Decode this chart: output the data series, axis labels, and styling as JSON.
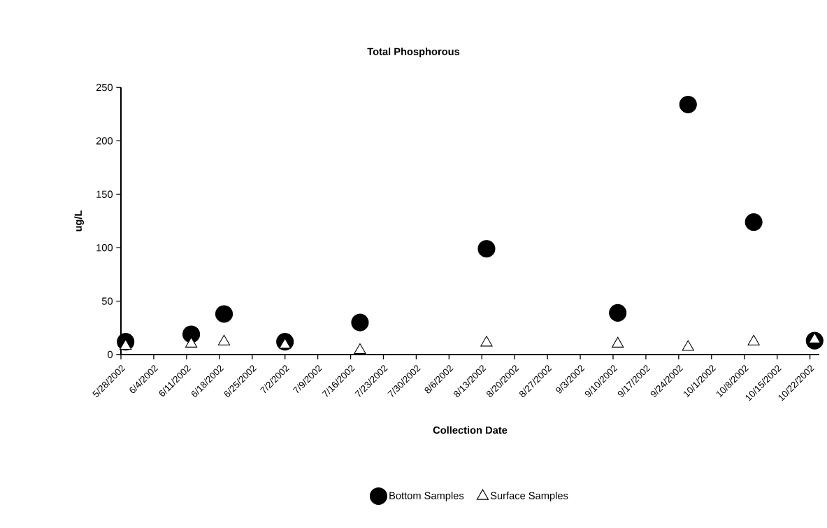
{
  "chart_data": {
    "type": "scatter",
    "title": "Total Phosphorous",
    "xlabel": "Collection Date",
    "ylabel": "ug/L",
    "xlim": [
      "2002-05-28",
      "2002-10-24"
    ],
    "xticks": [
      {
        "value": "2002-05-28",
        "label": "5/28/2002"
      },
      {
        "value": "2002-06-04",
        "label": "6/4/2002"
      },
      {
        "value": "2002-06-11",
        "label": "6/11/2002"
      },
      {
        "value": "2002-06-18",
        "label": "6/18/2002"
      },
      {
        "value": "2002-06-25",
        "label": "6/25/2002"
      },
      {
        "value": "2002-07-02",
        "label": "7/2/2002"
      },
      {
        "value": "2002-07-09",
        "label": "7/9/2002"
      },
      {
        "value": "2002-07-16",
        "label": "7/16/2002"
      },
      {
        "value": "2002-07-23",
        "label": "7/23/2002"
      },
      {
        "value": "2002-07-30",
        "label": "7/30/2002"
      },
      {
        "value": "2002-08-06",
        "label": "8/6/2002"
      },
      {
        "value": "2002-08-13",
        "label": "8/13/2002"
      },
      {
        "value": "2002-08-20",
        "label": "8/20/2002"
      },
      {
        "value": "2002-08-27",
        "label": "8/27/2002"
      },
      {
        "value": "2002-09-03",
        "label": "9/3/2002"
      },
      {
        "value": "2002-09-10",
        "label": "9/10/2002"
      },
      {
        "value": "2002-09-17",
        "label": "9/17/2002"
      },
      {
        "value": "2002-09-24",
        "label": "9/24/2002"
      },
      {
        "value": "2002-10-01",
        "label": "10/1/2002"
      },
      {
        "value": "2002-10-08",
        "label": "10/8/2002"
      },
      {
        "value": "2002-10-15",
        "label": "10/15/2002"
      },
      {
        "value": "2002-10-22",
        "label": "10/22/2002"
      }
    ],
    "ylim": [
      0,
      250
    ],
    "yticks": [
      0,
      50,
      100,
      150,
      200,
      250
    ],
    "grid": false,
    "legend": "bottom",
    "x": [
      "2002-05-29",
      "2002-06-12",
      "2002-06-19",
      "2002-07-02",
      "2002-07-18",
      "2002-08-14",
      "2002-09-11",
      "2002-09-26",
      "2002-10-10",
      "2002-10-23"
    ],
    "series": [
      {
        "name": "Bottom Samples",
        "color": "#000000",
        "marker": "circle",
        "values": [
          12,
          19,
          38,
          12,
          30,
          99,
          39,
          234,
          124,
          13
        ]
      },
      {
        "name": "Surface Samples",
        "color": "#ffffff",
        "marker": "triangle",
        "values": [
          8,
          10,
          12,
          9,
          4,
          11,
          10,
          7,
          12,
          14
        ]
      }
    ]
  }
}
